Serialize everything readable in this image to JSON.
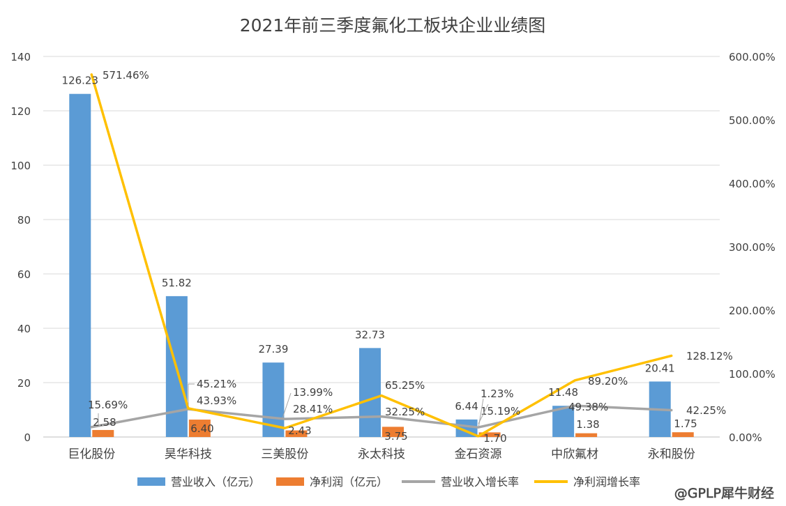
{
  "chart_data": {
    "type": "bar",
    "title": "2021年前三季度氟化工板块企业业绩图",
    "categories": [
      "巨化股份",
      "昊华科技",
      "三美股份",
      "永太科技",
      "金石资源",
      "中欣氟材",
      "永和股份"
    ],
    "y_left": {
      "min": 0,
      "max": 140,
      "step": 20,
      "ticks": [
        "0",
        "20",
        "40",
        "60",
        "80",
        "100",
        "120",
        "140"
      ]
    },
    "y_right": {
      "min": 0,
      "max": 600,
      "step": 100,
      "ticks": [
        "0.00%",
        "100.00%",
        "200.00%",
        "300.00%",
        "400.00%",
        "500.00%",
        "600.00%"
      ]
    },
    "series": [
      {
        "name": "营业收入（亿元）",
        "type": "bar",
        "axis": "left",
        "color": "#5b9bd5",
        "values": [
          126.23,
          51.82,
          27.39,
          32.73,
          6.44,
          11.48,
          20.41
        ],
        "labels": [
          "126.23",
          "51.82",
          "27.39",
          "32.73",
          "6.44",
          "11.48",
          "20.41"
        ]
      },
      {
        "name": "净利润（亿元）",
        "type": "bar",
        "axis": "left",
        "color": "#ed7d31",
        "values": [
          2.58,
          6.4,
          2.43,
          3.75,
          1.7,
          1.38,
          1.75
        ],
        "labels": [
          "2.58",
          "6.40",
          "2.43",
          "3.75",
          "1.70",
          "1.38",
          "1.75"
        ]
      },
      {
        "name": "营业收入增长率",
        "type": "line",
        "axis": "right",
        "color": "#a5a5a5",
        "values": [
          15.69,
          43.93,
          28.41,
          32.25,
          15.19,
          49.38,
          42.25
        ],
        "labels": [
          "15.69%",
          "43.93%",
          "28.41%",
          "32.25%",
          "15.19%",
          "49.38%",
          "42.25%"
        ]
      },
      {
        "name": "净利润增长率",
        "type": "line",
        "axis": "right",
        "color": "#ffc000",
        "values": [
          571.46,
          45.21,
          13.99,
          65.25,
          1.23,
          89.2,
          128.12
        ],
        "labels": [
          "571.46%",
          "45.21%",
          "13.99%",
          "65.25%",
          "1.23%",
          "89.20%",
          "128.12%"
        ]
      }
    ],
    "grid": true,
    "legend": "bottom"
  },
  "watermark": "@GPLP犀牛财经"
}
